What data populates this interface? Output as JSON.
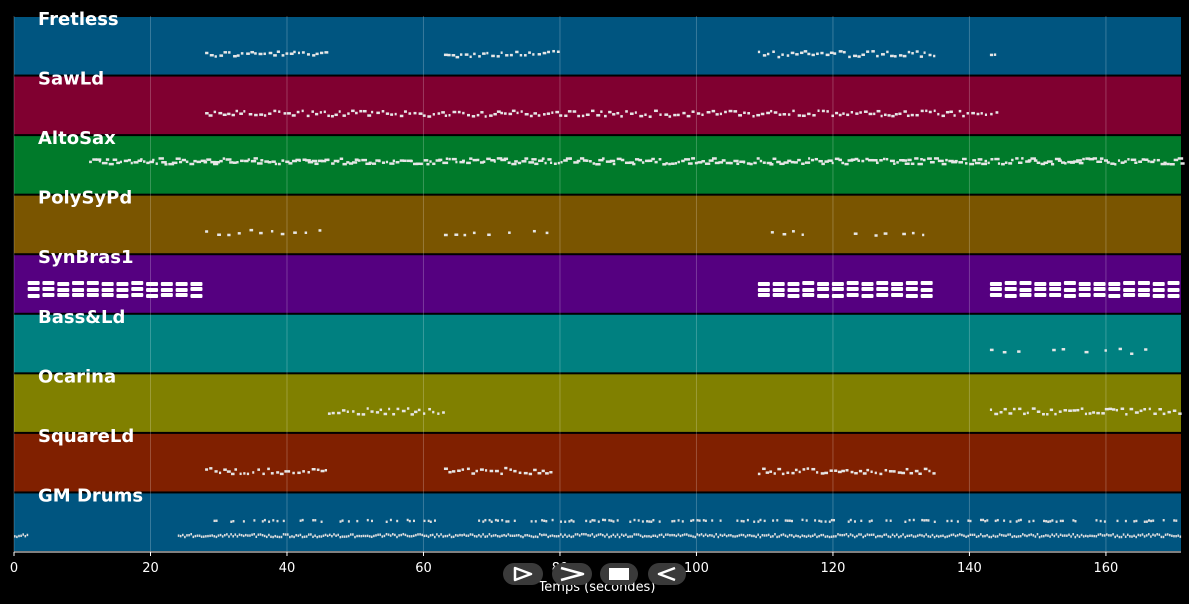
{
  "chart_data": {
    "type": "piano-roll",
    "xlabel": "Temps (secondes)",
    "xlim": [
      0,
      171
    ],
    "xticks": [
      0,
      20,
      40,
      60,
      80,
      100,
      120,
      140,
      160
    ],
    "grid": true,
    "tracks": [
      {
        "name": "Fretless",
        "color": "#005580",
        "segments": [
          [
            28,
            46
          ],
          [
            63,
            80
          ],
          [
            109,
            135
          ],
          [
            143,
            144
          ]
        ],
        "density": "sparse"
      },
      {
        "name": "SawLd",
        "color": "#800030",
        "segments": [
          [
            28,
            144
          ]
        ],
        "density": "sparse"
      },
      {
        "name": "AltoSax",
        "color": "#007a2a",
        "segments": [
          [
            11,
            171
          ]
        ],
        "density": "dense"
      },
      {
        "name": "PolySyPd",
        "color": "#7a5500",
        "segments": [
          [
            28,
            46
          ],
          [
            63,
            79
          ],
          [
            109,
            134
          ]
        ],
        "density": "very-sparse"
      },
      {
        "name": "SynBras1",
        "color": "#550080",
        "segments": [
          [
            2,
            28
          ],
          [
            109,
            135
          ],
          [
            143,
            171
          ]
        ],
        "density": "blocks"
      },
      {
        "name": "Bass&Ld",
        "color": "#008080",
        "segments": [
          [
            143,
            167
          ]
        ],
        "density": "very-sparse"
      },
      {
        "name": "Ocarina",
        "color": "#808000",
        "segments": [
          [
            46,
            63
          ],
          [
            143,
            171
          ]
        ],
        "density": "sparse"
      },
      {
        "name": "SquareLd",
        "color": "#802000",
        "segments": [
          [
            28,
            46
          ],
          [
            63,
            79
          ],
          [
            109,
            135
          ]
        ],
        "density": "sparse"
      },
      {
        "name": "GM Drums",
        "color": "#005580",
        "segments": [
          [
            0,
            2
          ],
          [
            24,
            171
          ]
        ],
        "density": "drums"
      }
    ]
  },
  "controls": {
    "icons": [
      "play-icon",
      "fast-forward-icon",
      "stop-icon",
      "rewind-icon"
    ]
  }
}
